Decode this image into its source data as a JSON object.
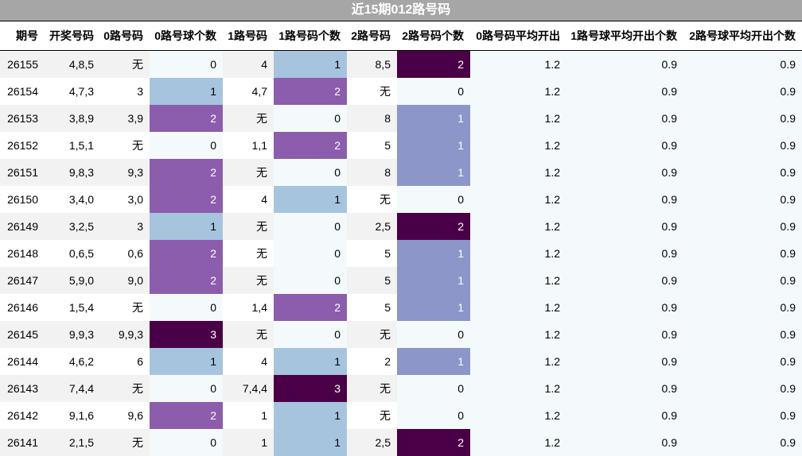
{
  "title": "近15期012路号码",
  "headers": [
    "期号",
    "开奖号码",
    "0路号码",
    "0路号球个数",
    "1路号码",
    "1路号码个数",
    "2路号码",
    "2路号码个数",
    "0路号码平均开出",
    "1路号球平均开出个数",
    "2路号球平均开出个数"
  ],
  "colors": {
    "count_zero": "#f4fafb",
    "count_light_blue": "#a7c4df",
    "count_purple": "#8b5dac",
    "count_slate_blue": "#8c96c8",
    "count_dark_purple": "#4a0046"
  },
  "rows": [
    [
      "26155",
      "4,8,5",
      "无",
      "0",
      "4",
      "1",
      "8,5",
      "2",
      "1.2",
      "0.9",
      "0.9"
    ],
    [
      "26154",
      "4,7,3",
      "3",
      "1",
      "4,7",
      "2",
      "无",
      "0",
      "1.2",
      "0.9",
      "0.9"
    ],
    [
      "26153",
      "3,8,9",
      "3,9",
      "2",
      "无",
      "0",
      "8",
      "1",
      "1.2",
      "0.9",
      "0.9"
    ],
    [
      "26152",
      "1,5,1",
      "无",
      "0",
      "1,1",
      "2",
      "5",
      "1",
      "1.2",
      "0.9",
      "0.9"
    ],
    [
      "26151",
      "9,8,3",
      "9,3",
      "2",
      "无",
      "0",
      "8",
      "1",
      "1.2",
      "0.9",
      "0.9"
    ],
    [
      "26150",
      "3,4,0",
      "3,0",
      "2",
      "4",
      "1",
      "无",
      "0",
      "1.2",
      "0.9",
      "0.9"
    ],
    [
      "26149",
      "3,2,5",
      "3",
      "1",
      "无",
      "0",
      "2,5",
      "2",
      "1.2",
      "0.9",
      "0.9"
    ],
    [
      "26148",
      "0,6,5",
      "0,6",
      "2",
      "无",
      "0",
      "5",
      "1",
      "1.2",
      "0.9",
      "0.9"
    ],
    [
      "26147",
      "5,9,0",
      "9,0",
      "2",
      "无",
      "0",
      "5",
      "1",
      "1.2",
      "0.9",
      "0.9"
    ],
    [
      "26146",
      "1,5,4",
      "无",
      "0",
      "1,4",
      "2",
      "5",
      "1",
      "1.2",
      "0.9",
      "0.9"
    ],
    [
      "26145",
      "9,9,3",
      "9,9,3",
      "3",
      "无",
      "0",
      "无",
      "0",
      "1.2",
      "0.9",
      "0.9"
    ],
    [
      "26144",
      "4,6,2",
      "6",
      "1",
      "4",
      "1",
      "2",
      "1",
      "1.2",
      "0.9",
      "0.9"
    ],
    [
      "26143",
      "7,4,4",
      "无",
      "0",
      "7,4,4",
      "3",
      "无",
      "0",
      "1.2",
      "0.9",
      "0.9"
    ],
    [
      "26142",
      "9,1,6",
      "9,6",
      "2",
      "1",
      "1",
      "无",
      "0",
      "1.2",
      "0.9",
      "0.9"
    ],
    [
      "26141",
      "2,1,5",
      "无",
      "0",
      "1",
      "1",
      "2,5",
      "2",
      "1.2",
      "0.9",
      "0.9"
    ]
  ]
}
